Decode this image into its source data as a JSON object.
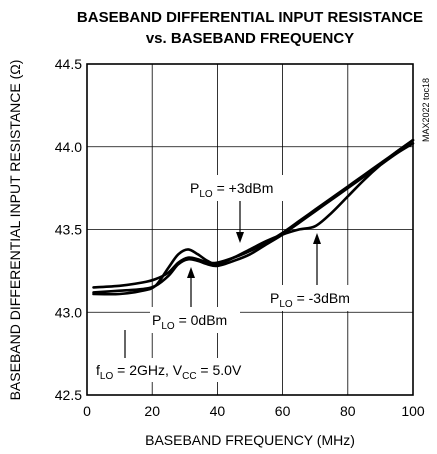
{
  "chart_data": {
    "type": "line",
    "title": "BASEBAND DIFFERENTIAL INPUT RESISTANCE",
    "subtitle": "vs. BASEBAND FREQUENCY",
    "xlabel": "BASEBAND FREQUENCY (MHz)",
    "ylabel": "BASEBAND DIFFERENTIAL INPUT RESISTANCE (Ω)",
    "xlim": [
      0,
      100
    ],
    "ylim": [
      42.5,
      44.5
    ],
    "x_ticks": [
      "0",
      "20",
      "40",
      "60",
      "80",
      "100"
    ],
    "y_ticks": [
      "42.5",
      "43.0",
      "43.5",
      "44.0",
      "44.5"
    ],
    "grid": true,
    "figure_id": "MAX2022 toc18",
    "condition": "f",
    "condition_sub": "LO",
    "condition_rest": " = 2GHz, V",
    "condition_sub2": "CC",
    "condition_end": " = 5.0V",
    "series": [
      {
        "label_prefix": "P",
        "label_sub": "LO",
        "label_suffix": " = +3dBm",
        "x": [
          2,
          10,
          17,
          21,
          25,
          28,
          31,
          34,
          37,
          40,
          45,
          50,
          55,
          60,
          65,
          70,
          75,
          80,
          85,
          90,
          95,
          100
        ],
        "y": [
          43.15,
          43.16,
          43.18,
          43.2,
          43.24,
          43.3,
          43.33,
          43.32,
          43.3,
          43.3,
          43.33,
          43.37,
          43.42,
          43.48,
          43.55,
          43.62,
          43.69,
          43.76,
          43.83,
          43.9,
          43.97,
          44.04
        ]
      },
      {
        "label_prefix": "P",
        "label_sub": "LO",
        "label_suffix": " = 0dBm",
        "x": [
          2,
          10,
          17,
          21,
          25,
          28,
          31,
          34,
          37,
          40,
          45,
          50,
          55,
          60,
          65,
          70,
          75,
          80,
          85,
          90,
          95,
          100
        ],
        "y": [
          43.12,
          43.13,
          43.14,
          43.16,
          43.22,
          43.29,
          43.32,
          43.31,
          43.29,
          43.28,
          43.31,
          43.35,
          43.41,
          43.47,
          43.54,
          43.61,
          43.68,
          43.75,
          43.82,
          43.89,
          43.96,
          44.02
        ]
      },
      {
        "label_prefix": "P",
        "label_sub": "LO",
        "label_suffix": " = -3dBm",
        "x": [
          2,
          10,
          17,
          21,
          25,
          28,
          31,
          34,
          37,
          40,
          45,
          50,
          55,
          60,
          65,
          70,
          75,
          80,
          85,
          90,
          95,
          100
        ],
        "y": [
          43.11,
          43.11,
          43.13,
          43.16,
          43.27,
          43.35,
          43.38,
          43.35,
          43.31,
          43.29,
          43.33,
          43.38,
          43.43,
          43.47,
          43.5,
          43.52,
          43.6,
          43.7,
          43.8,
          43.89,
          43.97,
          44.04
        ]
      }
    ]
  }
}
